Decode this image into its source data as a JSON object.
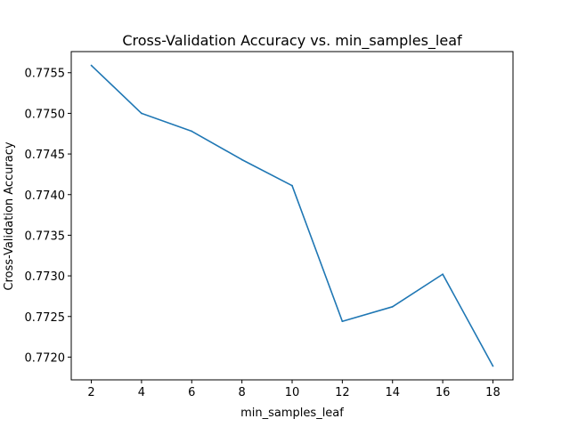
{
  "chart_data": {
    "type": "line",
    "title": "Cross-Validation Accuracy vs. min_samples_leaf",
    "xlabel": "min_samples_leaf",
    "ylabel": "Cross-Validation Accuracy",
    "x": [
      2,
      4,
      6,
      8,
      10,
      12,
      14,
      16,
      18
    ],
    "series": [
      {
        "values": [
          0.77559,
          0.775,
          0.77478,
          0.77443,
          0.77411,
          0.77244,
          0.77262,
          0.77302,
          0.77189
        ]
      }
    ],
    "xlim": [
      1.2,
      18.8
    ],
    "ylim": [
      0.77172,
      0.77576
    ],
    "xticks": [
      2,
      4,
      6,
      8,
      10,
      12,
      14,
      16,
      18
    ],
    "yticks": [
      0.772,
      0.7725,
      0.773,
      0.7735,
      0.774,
      0.7745,
      0.775,
      0.7755
    ],
    "ytick_labels": [
      "0.7720",
      "0.7725",
      "0.7730",
      "0.7735",
      "0.7740",
      "0.7745",
      "0.7750",
      "0.7755"
    ],
    "grid": false,
    "line_color": "#1f77b4"
  }
}
